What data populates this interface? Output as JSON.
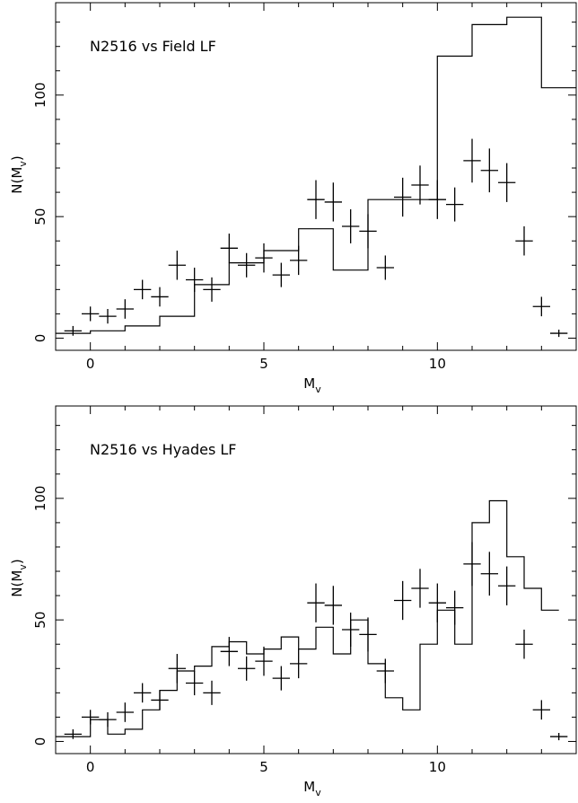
{
  "chart_data": [
    {
      "type": "scatter",
      "title": "",
      "annotation": "N2516 vs Field LF",
      "xlabel_main": "M",
      "xlabel_sub": "v",
      "ylabel_main": "N(M",
      "ylabel_sub": "v",
      "ylabel_close": ")",
      "xlim": [
        -1,
        14
      ],
      "ylim": [
        -5,
        138
      ],
      "x_ticks": [
        0,
        5,
        10
      ],
      "y_ticks": [
        0,
        50,
        100
      ],
      "points": {
        "x": [
          -0.5,
          0,
          0.5,
          1,
          1.5,
          2,
          2.5,
          3,
          3.5,
          4,
          4.5,
          5,
          5.5,
          6,
          6.5,
          7,
          7.5,
          8,
          8.5,
          9,
          9.5,
          10,
          10.5,
          11,
          11.5,
          12,
          12.5,
          13,
          13.5
        ],
        "y": [
          3,
          10,
          9,
          12,
          20,
          17,
          30,
          24,
          20,
          37,
          30,
          33,
          26,
          32,
          57,
          56,
          46,
          44,
          29,
          58,
          63,
          57,
          55,
          73,
          69,
          64,
          40,
          13,
          2
        ],
        "yerr": [
          2,
          3,
          3,
          4,
          4,
          4,
          6,
          5,
          5,
          6,
          5,
          6,
          5,
          6,
          8,
          8,
          7,
          7,
          5,
          8,
          8,
          8,
          7,
          9,
          9,
          8,
          6,
          4,
          1.5
        ]
      },
      "model": {
        "edges": [
          -1,
          0,
          1,
          2,
          3,
          4,
          5,
          6,
          7,
          8,
          9,
          10,
          11,
          12,
          13,
          14
        ],
        "values": [
          2,
          3,
          5,
          9,
          22,
          31,
          36,
          45,
          28,
          57,
          57,
          116,
          129,
          132,
          103
        ]
      }
    },
    {
      "type": "scatter",
      "title": "",
      "annotation": "N2516 vs Hyades LF",
      "xlabel_main": "M",
      "xlabel_sub": "v",
      "ylabel_main": "N(M",
      "ylabel_sub": "v",
      "ylabel_close": ")",
      "xlim": [
        -1,
        14
      ],
      "ylim": [
        -5,
        138
      ],
      "x_ticks": [
        0,
        5,
        10
      ],
      "y_ticks": [
        0,
        50,
        100
      ],
      "points": {
        "x": [
          -0.5,
          0,
          0.5,
          1,
          1.5,
          2,
          2.5,
          3,
          3.5,
          4,
          4.5,
          5,
          5.5,
          6,
          6.5,
          7,
          7.5,
          8,
          8.5,
          9,
          9.5,
          10,
          10.5,
          11,
          11.5,
          12,
          12.5,
          13,
          13.5
        ],
        "y": [
          3,
          10,
          9,
          12,
          20,
          17,
          30,
          24,
          20,
          37,
          30,
          33,
          26,
          32,
          57,
          56,
          46,
          44,
          29,
          58,
          63,
          57,
          55,
          73,
          69,
          64,
          40,
          13,
          2
        ],
        "yerr": [
          2,
          3,
          3,
          4,
          4,
          4,
          6,
          5,
          5,
          6,
          5,
          6,
          5,
          6,
          8,
          8,
          7,
          7,
          5,
          8,
          8,
          8,
          7,
          9,
          9,
          8,
          6,
          4,
          1.5
        ]
      },
      "model": {
        "edges": [
          -1,
          0,
          0.5,
          1,
          1.5,
          2,
          2.5,
          3,
          3.5,
          4,
          4.5,
          5,
          5.5,
          6,
          6.5,
          7,
          7.5,
          8,
          8.5,
          9,
          9.5,
          10,
          10.5,
          11,
          11.5,
          12,
          12.5,
          13,
          13.5
        ],
        "values": [
          2,
          9,
          3,
          5,
          13,
          21,
          29,
          31,
          39,
          41,
          36,
          38,
          43,
          38,
          47,
          36,
          50,
          32,
          18,
          13,
          40,
          54,
          40,
          90,
          99,
          76,
          63,
          54
        ]
      }
    }
  ]
}
